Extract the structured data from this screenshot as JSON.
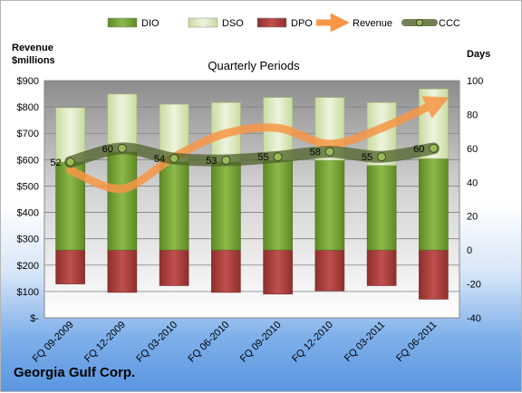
{
  "chart_data": {
    "type": "bar",
    "title": "Quarterly Periods",
    "left_axis_label": "Revenue\n$millions",
    "right_axis_label": "Days",
    "categories": [
      "FQ 09-2009",
      "FQ 12-2009",
      "FQ 03-2010",
      "FQ 06-2010",
      "FQ 09-2010",
      "FQ 12-2010",
      "FQ 03-2011",
      "FQ 06-2011"
    ],
    "left_ticks": [
      "$-",
      "$100",
      "$200",
      "$300",
      "$400",
      "$500",
      "$600",
      "$700",
      "$800",
      "$900"
    ],
    "right_ticks": [
      "-40",
      "-20",
      "0",
      "20",
      "40",
      "60",
      "80",
      "100"
    ],
    "left_ylim": [
      0,
      900
    ],
    "right_ylim": [
      -40,
      100
    ],
    "stacking": "DIO from 0 days upward, DSO stacked above DIO, DPO plotted below 0 days",
    "series": [
      {
        "name": "DIO",
        "type": "bar",
        "axis": "right",
        "color": "#7aa33a",
        "values": [
          52,
          58,
          52,
          52,
          53,
          53,
          50,
          54
        ]
      },
      {
        "name": "DSO",
        "type": "bar",
        "axis": "right",
        "color": "#dfeac4",
        "values": [
          32,
          34,
          34,
          35,
          37,
          37,
          37,
          41
        ]
      },
      {
        "name": "DPO",
        "type": "bar",
        "axis": "right",
        "color": "#c0504d",
        "values": [
          -20,
          -25,
          -21,
          -25,
          -26,
          -24,
          -21,
          -29
        ]
      },
      {
        "name": "Revenue",
        "type": "line",
        "axis": "left",
        "color": "#f79646",
        "values": [
          560,
          490,
          610,
          700,
          720,
          660,
          720,
          810
        ]
      },
      {
        "name": "CCC",
        "type": "line",
        "axis": "right",
        "color": "#4f6228",
        "values": [
          52,
          60,
          54,
          53,
          55,
          58,
          55,
          60
        ],
        "labels": [
          "52",
          "60",
          "54",
          "53",
          "55",
          "58",
          "55",
          "60"
        ]
      }
    ],
    "legend": [
      "DIO",
      "DSO",
      "DPO",
      "Revenue",
      "CCC"
    ],
    "legend_position": "top",
    "grid": true
  },
  "footer": {
    "company": "Georgia Gulf Corp."
  }
}
